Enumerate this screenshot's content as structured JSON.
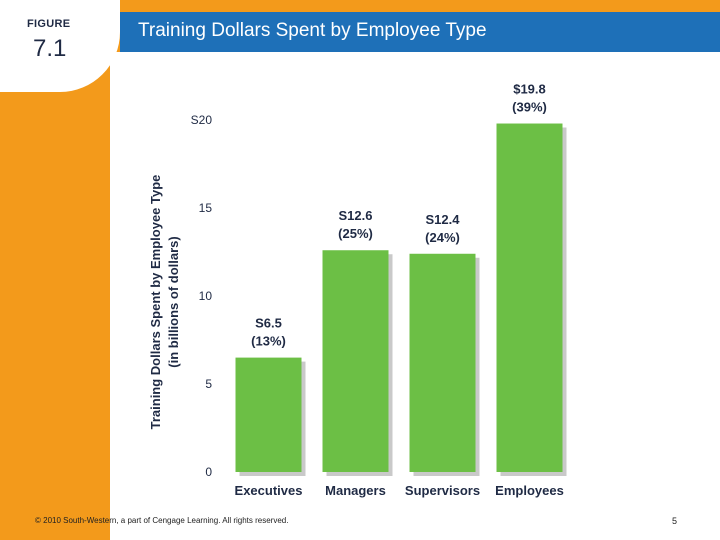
{
  "header": {
    "figure_label": "FIGURE",
    "figure_number": "7.1",
    "title": "Training Dollars Spent by Employee Type"
  },
  "footer": {
    "copyright": "© 2010 South-Western, a part of Cengage Learning. All rights reserved.",
    "page_number": "5"
  },
  "colors": {
    "frame": "#f39a1b",
    "title_bar": "#1e70b8",
    "bar": "#6cbf45",
    "bar_shadow": "#c9c9c9"
  },
  "chart_data": {
    "type": "bar",
    "title": "",
    "ylabel": [
      "Training Dollars Spent by Employee Type",
      "(in billions of dollars)"
    ],
    "xlabel": "",
    "categories": [
      "Executives",
      "Managers",
      "Supervisors",
      "Employees"
    ],
    "values": [
      6.5,
      12.6,
      12.4,
      19.8
    ],
    "value_labels": [
      "S6.5",
      "S12.6",
      "S12.4",
      "$19.8"
    ],
    "percent_labels": [
      "(13%)",
      "(25%)",
      "(24%)",
      "(39%)"
    ],
    "ylim": [
      0,
      20
    ],
    "yticks": [
      0,
      5,
      10,
      15,
      20
    ],
    "ytick_labels": [
      "0",
      "5",
      "10",
      "15",
      "S20"
    ],
    "grid": false,
    "legend": "none"
  }
}
